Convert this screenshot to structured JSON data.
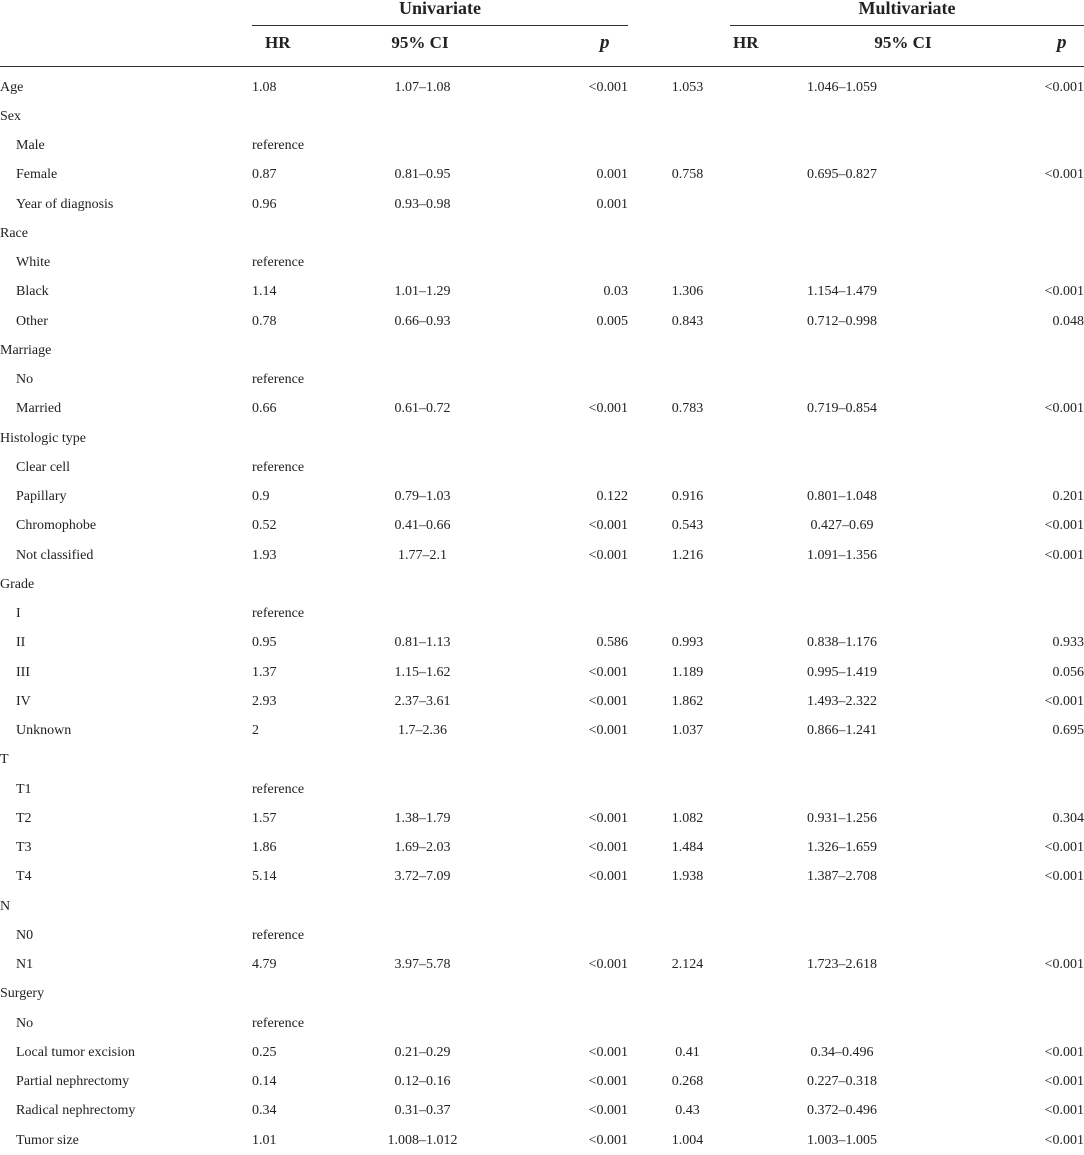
{
  "header": {
    "univariate": "Univariate",
    "multivariate": "Multivariate",
    "hr": "HR",
    "ci": "95% CI",
    "p": "p"
  },
  "rows": [
    {
      "label": "Age",
      "indent": false,
      "u_hr": "1.08",
      "u_ci": "1.07–1.08",
      "u_p": "<0.001",
      "m_hr": "1.053",
      "m_ci": "1.046–1.059",
      "m_p": "<0.001"
    },
    {
      "label": "Sex",
      "indent": false,
      "u_hr": "",
      "u_ci": "",
      "u_p": "",
      "m_hr": "",
      "m_ci": "",
      "m_p": ""
    },
    {
      "label": "Male",
      "indent": true,
      "u_hr": "reference",
      "u_ci": "",
      "u_p": "",
      "m_hr": "",
      "m_ci": "",
      "m_p": ""
    },
    {
      "label": "Female",
      "indent": true,
      "u_hr": "0.87",
      "u_ci": "0.81–0.95",
      "u_p": "0.001",
      "m_hr": "0.758",
      "m_ci": "0.695–0.827",
      "m_p": "<0.001"
    },
    {
      "label": "Year of diagnosis",
      "indent": true,
      "u_hr": "0.96",
      "u_ci": "0.93–0.98",
      "u_p": "0.001",
      "m_hr": "",
      "m_ci": "",
      "m_p": ""
    },
    {
      "label": "Race",
      "indent": false,
      "u_hr": "",
      "u_ci": "",
      "u_p": "",
      "m_hr": "",
      "m_ci": "",
      "m_p": ""
    },
    {
      "label": "White",
      "indent": true,
      "u_hr": "reference",
      "u_ci": "",
      "u_p": "",
      "m_hr": "",
      "m_ci": "",
      "m_p": ""
    },
    {
      "label": "Black",
      "indent": true,
      "u_hr": "1.14",
      "u_ci": "1.01–1.29",
      "u_p": "0.03",
      "m_hr": "1.306",
      "m_ci": "1.154–1.479",
      "m_p": "<0.001"
    },
    {
      "label": "Other",
      "indent": true,
      "u_hr": "0.78",
      "u_ci": "0.66–0.93",
      "u_p": "0.005",
      "m_hr": "0.843",
      "m_ci": "0.712–0.998",
      "m_p": "0.048"
    },
    {
      "label": "Marriage",
      "indent": false,
      "u_hr": "",
      "u_ci": "",
      "u_p": "",
      "m_hr": "",
      "m_ci": "",
      "m_p": ""
    },
    {
      "label": "No",
      "indent": true,
      "u_hr": "reference",
      "u_ci": "",
      "u_p": "",
      "m_hr": "",
      "m_ci": "",
      "m_p": ""
    },
    {
      "label": "Married",
      "indent": true,
      "u_hr": "0.66",
      "u_ci": "0.61–0.72",
      "u_p": "<0.001",
      "m_hr": "0.783",
      "m_ci": "0.719–0.854",
      "m_p": "<0.001"
    },
    {
      "label": "Histologic type",
      "indent": false,
      "u_hr": "",
      "u_ci": "",
      "u_p": "",
      "m_hr": "",
      "m_ci": "",
      "m_p": ""
    },
    {
      "label": "Clear cell",
      "indent": true,
      "u_hr": "reference",
      "u_ci": "",
      "u_p": "",
      "m_hr": "",
      "m_ci": "",
      "m_p": ""
    },
    {
      "label": "Papillary",
      "indent": true,
      "u_hr": "0.9",
      "u_ci": "0.79–1.03",
      "u_p": "0.122",
      "m_hr": "0.916",
      "m_ci": "0.801–1.048",
      "m_p": "0.201"
    },
    {
      "label": "Chromophobe",
      "indent": true,
      "u_hr": "0.52",
      "u_ci": "0.41–0.66",
      "u_p": "<0.001",
      "m_hr": "0.543",
      "m_ci": "0.427–0.69",
      "m_p": "<0.001"
    },
    {
      "label": "Not classified",
      "indent": true,
      "u_hr": "1.93",
      "u_ci": "1.77–2.1",
      "u_p": "<0.001",
      "m_hr": "1.216",
      "m_ci": "1.091–1.356",
      "m_p": "<0.001"
    },
    {
      "label": "Grade",
      "indent": false,
      "u_hr": "",
      "u_ci": "",
      "u_p": "",
      "m_hr": "",
      "m_ci": "",
      "m_p": ""
    },
    {
      "label": "I",
      "indent": true,
      "u_hr": "reference",
      "u_ci": "",
      "u_p": "",
      "m_hr": "",
      "m_ci": "",
      "m_p": ""
    },
    {
      "label": "II",
      "indent": true,
      "u_hr": "0.95",
      "u_ci": "0.81–1.13",
      "u_p": "0.586",
      "m_hr": "0.993",
      "m_ci": "0.838–1.176",
      "m_p": "0.933"
    },
    {
      "label": "III",
      "indent": true,
      "u_hr": "1.37",
      "u_ci": "1.15–1.62",
      "u_p": "<0.001",
      "m_hr": "1.189",
      "m_ci": "0.995–1.419",
      "m_p": "0.056"
    },
    {
      "label": "IV",
      "indent": true,
      "u_hr": "2.93",
      "u_ci": "2.37–3.61",
      "u_p": "<0.001",
      "m_hr": "1.862",
      "m_ci": "1.493–2.322",
      "m_p": "<0.001"
    },
    {
      "label": "Unknown",
      "indent": true,
      "u_hr": "2",
      "u_ci": "1.7–2.36",
      "u_p": "<0.001",
      "m_hr": "1.037",
      "m_ci": "0.866–1.241",
      "m_p": "0.695"
    },
    {
      "label": "T",
      "indent": false,
      "u_hr": "",
      "u_ci": "",
      "u_p": "",
      "m_hr": "",
      "m_ci": "",
      "m_p": ""
    },
    {
      "label": "T1",
      "indent": true,
      "u_hr": "reference",
      "u_ci": "",
      "u_p": "",
      "m_hr": "",
      "m_ci": "",
      "m_p": ""
    },
    {
      "label": "T2",
      "indent": true,
      "u_hr": "1.57",
      "u_ci": "1.38–1.79",
      "u_p": "<0.001",
      "m_hr": "1.082",
      "m_ci": "0.931–1.256",
      "m_p": "0.304"
    },
    {
      "label": "T3",
      "indent": true,
      "u_hr": "1.86",
      "u_ci": "1.69–2.03",
      "u_p": "<0.001",
      "m_hr": "1.484",
      "m_ci": "1.326–1.659",
      "m_p": "<0.001"
    },
    {
      "label": "T4",
      "indent": true,
      "u_hr": "5.14",
      "u_ci": "3.72–7.09",
      "u_p": "<0.001",
      "m_hr": "1.938",
      "m_ci": "1.387–2.708",
      "m_p": "<0.001"
    },
    {
      "label": "N",
      "indent": false,
      "u_hr": "",
      "u_ci": "",
      "u_p": "",
      "m_hr": "",
      "m_ci": "",
      "m_p": ""
    },
    {
      "label": "N0",
      "indent": true,
      "u_hr": "reference",
      "u_ci": "",
      "u_p": "",
      "m_hr": "",
      "m_ci": "",
      "m_p": ""
    },
    {
      "label": "N1",
      "indent": true,
      "u_hr": "4.79",
      "u_ci": "3.97–5.78",
      "u_p": "<0.001",
      "m_hr": "2.124",
      "m_ci": "1.723–2.618",
      "m_p": "<0.001"
    },
    {
      "label": "Surgery",
      "indent": false,
      "u_hr": "",
      "u_ci": "",
      "u_p": "",
      "m_hr": "",
      "m_ci": "",
      "m_p": ""
    },
    {
      "label": "No",
      "indent": true,
      "u_hr": "reference",
      "u_ci": "",
      "u_p": "",
      "m_hr": "",
      "m_ci": "",
      "m_p": ""
    },
    {
      "label": "Local tumor excision",
      "indent": true,
      "u_hr": "0.25",
      "u_ci": "0.21–0.29",
      "u_p": "<0.001",
      "m_hr": "0.41",
      "m_ci": "0.34–0.496",
      "m_p": "<0.001"
    },
    {
      "label": "Partial nephrectomy",
      "indent": true,
      "u_hr": "0.14",
      "u_ci": "0.12–0.16",
      "u_p": "<0.001",
      "m_hr": "0.268",
      "m_ci": "0.227–0.318",
      "m_p": "<0.001"
    },
    {
      "label": "Radical nephrectomy",
      "indent": true,
      "u_hr": "0.34",
      "u_ci": "0.31–0.37",
      "u_p": "<0.001",
      "m_hr": "0.43",
      "m_ci": "0.372–0.496",
      "m_p": "<0.001"
    },
    {
      "label": "Tumor size",
      "indent": true,
      "u_hr": "1.01",
      "u_ci": "1.008–1.012",
      "u_p": "<0.001",
      "m_hr": "1.004",
      "m_ci": "1.003–1.005",
      "m_p": "<0.001"
    }
  ]
}
